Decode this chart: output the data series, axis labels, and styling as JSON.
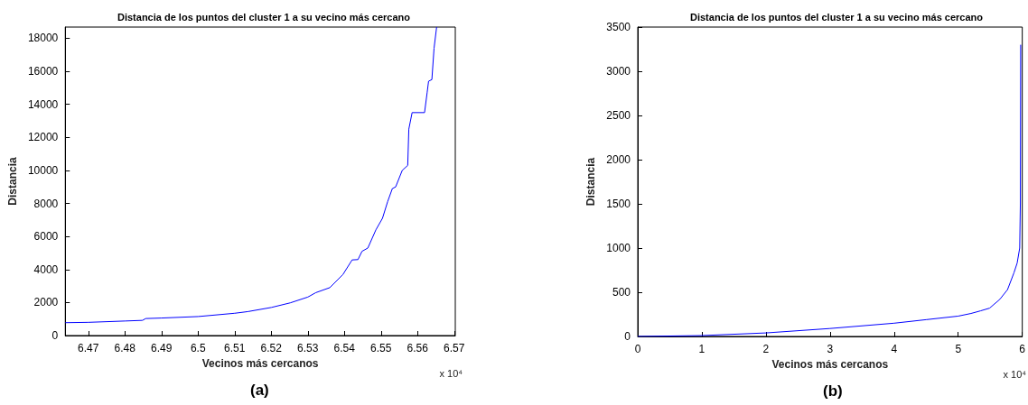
{
  "chart_data": [
    {
      "type": "line",
      "title": "Distancia de los puntos del cluster 1 a su vecino más cercano",
      "xlabel": "Vecinos más cercanos",
      "ylabel": "Distancia",
      "annotations": [
        "x 10⁴",
        "(a)"
      ],
      "x": [
        6.4637,
        6.47,
        6.48,
        6.4848,
        6.4857,
        6.49,
        6.5,
        6.51,
        6.5136,
        6.52,
        6.5252,
        6.53,
        6.5322,
        6.536,
        6.5396,
        6.5421,
        6.5437,
        6.5448,
        6.5464,
        6.5486,
        6.5504,
        6.5518,
        6.5531,
        6.554,
        6.5558,
        6.5573,
        6.5576,
        6.5585,
        6.5619,
        6.5626,
        6.563,
        6.5639,
        6.5645,
        6.5652
      ],
      "series": [
        {
          "color": "#0000ff",
          "values": [
            780,
            800,
            880,
            920,
            1030,
            1060,
            1150,
            1350,
            1450,
            1700,
            1980,
            2330,
            2600,
            2900,
            3700,
            4580,
            4600,
            5100,
            5300,
            6400,
            7100,
            8100,
            8900,
            9000,
            10000,
            10300,
            12500,
            13500,
            13500,
            14700,
            15400,
            15500,
            17400,
            18680
          ]
        }
      ],
      "xlim": [
        6.4637,
        6.5703
      ],
      "xticks": [
        6.47,
        6.48,
        6.49,
        6.5,
        6.51,
        6.52,
        6.53,
        6.54,
        6.55,
        6.56,
        6.57
      ],
      "ylim": [
        0,
        18680
      ],
      "yticks": [
        0,
        2000,
        4000,
        6000,
        8000,
        10000,
        12000,
        14000,
        16000,
        18000
      ],
      "grid": false,
      "marker": "none",
      "line_style": "solid"
    },
    {
      "type": "line",
      "title": "Distancia de los puntos del cluster 1 a su vecino más cercano",
      "xlabel": "Vecinos más cercanos",
      "ylabel": "Distancia",
      "annotations": [
        "x 10⁴",
        "(b)"
      ],
      "x": [
        0,
        1,
        2,
        3,
        4,
        4.5,
        5,
        5.2,
        5.35,
        5.49,
        5.65,
        5.77,
        5.87,
        5.92,
        5.96,
        5.97,
        5.975
      ],
      "series": [
        {
          "color": "#0000ff",
          "values": [
            0,
            10,
            40,
            90,
            150,
            190,
            230,
            260,
            290,
            320,
            420,
            530,
            720,
            830,
            1000,
            1500,
            3300
          ]
        }
      ],
      "xlim": [
        0,
        6
      ],
      "xticks": [
        0,
        1,
        2,
        3,
        4,
        5,
        6
      ],
      "ylim": [
        0,
        3500
      ],
      "yticks": [
        0,
        500,
        1000,
        1500,
        2000,
        2500,
        3000,
        3500
      ],
      "grid": false,
      "marker": "none",
      "line_style": "solid"
    }
  ]
}
